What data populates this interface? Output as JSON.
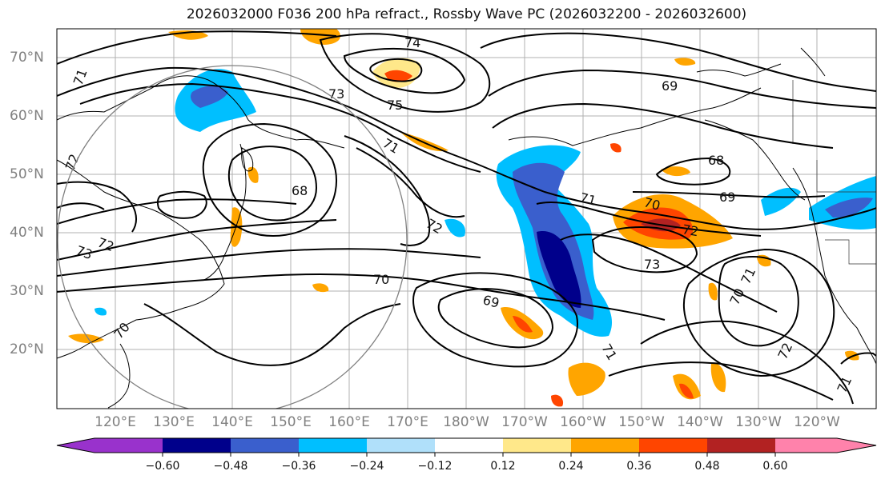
{
  "title": "2026032000 F036 200 hPa refract., Rossby Wave PC (2026032200 - 2026032600)",
  "map": {
    "lat_labels": [
      "70°N",
      "60°N",
      "50°N",
      "40°N",
      "30°N",
      "20°N"
    ],
    "lon_labels": [
      "120°E",
      "130°E",
      "140°E",
      "150°E",
      "160°E",
      "170°E",
      "180°W",
      "170°W",
      "160°W",
      "150°W",
      "140°W",
      "130°W",
      "120°W"
    ],
    "contour_labels": [
      "74",
      "75",
      "73",
      "72",
      "71",
      "68",
      "72",
      "71",
      "73",
      "72",
      "70",
      "69",
      "68",
      "69",
      "71",
      "70",
      "72",
      "73",
      "70",
      "71",
      "72",
      "71",
      "69",
      "70",
      "71"
    ]
  },
  "colorbar": {
    "ticks": [
      "−0.60",
      "−0.48",
      "−0.36",
      "−0.24",
      "−0.12",
      "0.12",
      "0.24",
      "0.36",
      "0.48",
      "0.60"
    ],
    "colors": [
      "#9932cc",
      "#00008b",
      "#3a5fcd",
      "#00bfff",
      "#b0e0fa",
      "#ffffff",
      "#ffe88a",
      "#ffa500",
      "#ff4500",
      "#b22222",
      "#ff82ab"
    ],
    "extend": "both"
  }
}
